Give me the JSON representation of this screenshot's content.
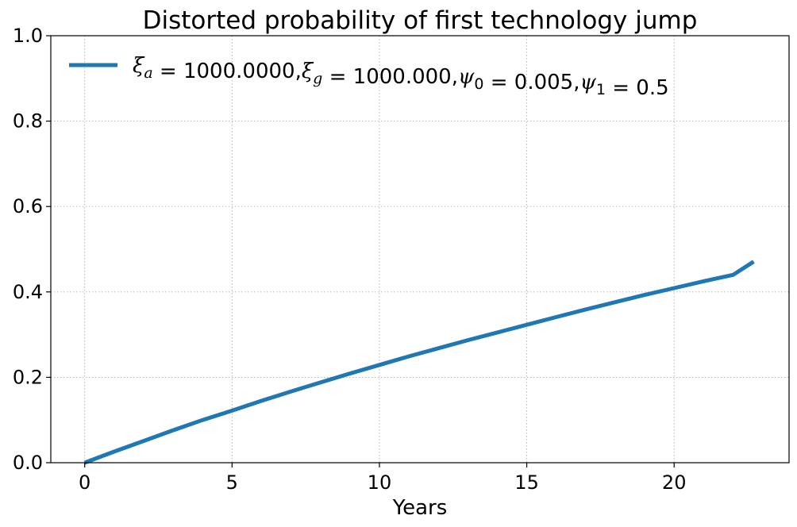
{
  "chart_data": {
    "type": "line",
    "title": "Distorted probability of first technology jump",
    "xlabel": "Years",
    "ylabel": "",
    "xlim": [
      -1.15,
      23.9
    ],
    "ylim": [
      0,
      1
    ],
    "xticks": [
      0,
      5,
      10,
      15,
      20
    ],
    "xtick_labels": [
      "0",
      "5",
      "10",
      "15",
      "20"
    ],
    "yticks": [
      0.0,
      0.2,
      0.4,
      0.6,
      0.8,
      1.0
    ],
    "ytick_labels": [
      "0.0",
      "0.2",
      "0.4",
      "0.6",
      "0.8",
      "1.0"
    ],
    "grid": true,
    "legend_position": "top-left",
    "series": [
      {
        "name": "ξa = 1000.0000,ξg = 1000.000,ψ0 = 0.005,ψ1 = 0.5",
        "color": "#1f77b4",
        "x": [
          0,
          1,
          2,
          3,
          4,
          5,
          6,
          7,
          8,
          9,
          10,
          11,
          12,
          13,
          14,
          15,
          16,
          17,
          18,
          19,
          20,
          21,
          22,
          22.7
        ],
        "y": [
          0.0,
          0.026,
          0.051,
          0.076,
          0.1,
          0.122,
          0.145,
          0.167,
          0.188,
          0.209,
          0.229,
          0.249,
          0.268,
          0.287,
          0.305,
          0.323,
          0.341,
          0.359,
          0.376,
          0.393,
          0.409,
          0.425,
          0.44,
          0.471
        ]
      }
    ]
  }
}
